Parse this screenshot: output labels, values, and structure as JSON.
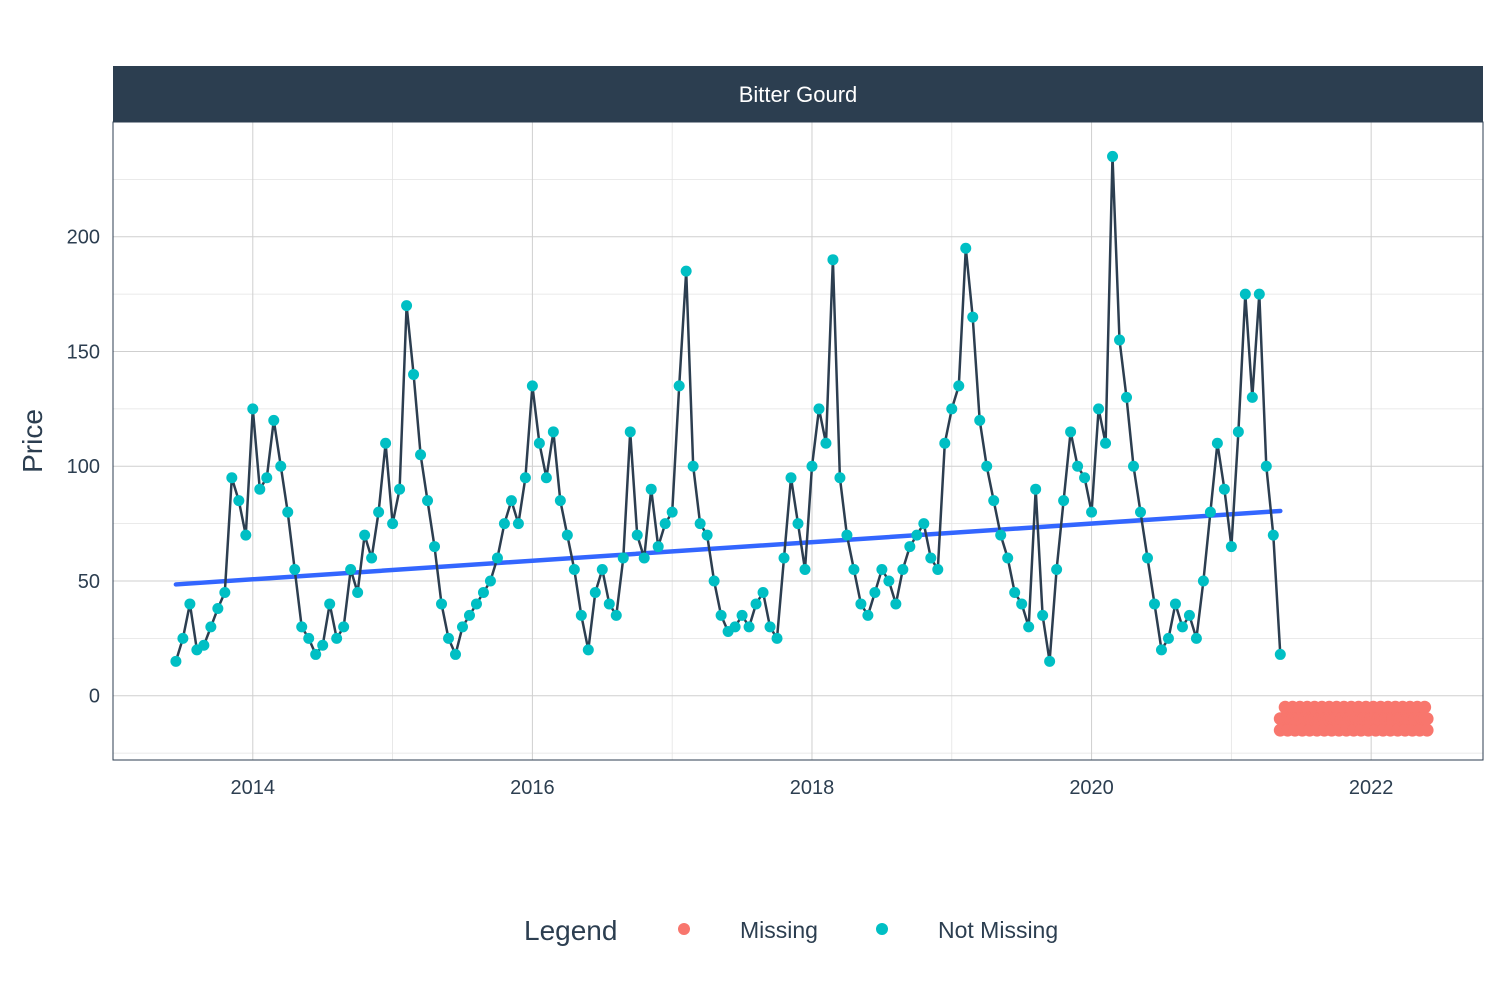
{
  "chart_data": {
    "type": "line",
    "facet_title": "Bitter Gourd",
    "xlabel": "",
    "ylabel": "Price",
    "xlim": [
      2013.0,
      2022.8
    ],
    "ylim": [
      -28,
      250
    ],
    "x_ticks": [
      2014,
      2016,
      2018,
      2020,
      2022
    ],
    "y_ticks": [
      0,
      50,
      100,
      150,
      200
    ],
    "grid": true,
    "legend": {
      "title": "Legend",
      "position": "bottom",
      "entries": [
        {
          "label": "Missing",
          "color": "#f8766d"
        },
        {
          "label": "Not Missing",
          "color": "#00bfc4"
        }
      ]
    },
    "colors": {
      "line": "#2c3e50",
      "trend": "#3366ff",
      "missing": "#f8766d",
      "not_missing": "#00bfc4",
      "strip": "#2c3e50"
    },
    "series": [
      {
        "name": "Not Missing",
        "x": [
          2013.45,
          2013.5,
          2013.55,
          2013.6,
          2013.65,
          2013.7,
          2013.75,
          2013.8,
          2013.85,
          2013.9,
          2013.95,
          2014.0,
          2014.05,
          2014.1,
          2014.15,
          2014.2,
          2014.25,
          2014.3,
          2014.35,
          2014.4,
          2014.45,
          2014.5,
          2014.55,
          2014.6,
          2014.65,
          2014.7,
          2014.75,
          2014.8,
          2014.85,
          2014.9,
          2014.95,
          2015.0,
          2015.05,
          2015.1,
          2015.15,
          2015.2,
          2015.25,
          2015.3,
          2015.35,
          2015.4,
          2015.45,
          2015.5,
          2015.55,
          2015.6,
          2015.65,
          2015.7,
          2015.75,
          2015.8,
          2015.85,
          2015.9,
          2015.95,
          2016.0,
          2016.05,
          2016.1,
          2016.15,
          2016.2,
          2016.25,
          2016.3,
          2016.35,
          2016.4,
          2016.45,
          2016.5,
          2016.55,
          2016.6,
          2016.65,
          2016.7,
          2016.75,
          2016.8,
          2016.85,
          2016.9,
          2016.95,
          2017.0,
          2017.05,
          2017.1,
          2017.15,
          2017.2,
          2017.25,
          2017.3,
          2017.35,
          2017.4,
          2017.45,
          2017.5,
          2017.55,
          2017.6,
          2017.65,
          2017.7,
          2017.75,
          2017.8,
          2017.85,
          2017.9,
          2017.95,
          2018.0,
          2018.05,
          2018.1,
          2018.15,
          2018.2,
          2018.25,
          2018.3,
          2018.35,
          2018.4,
          2018.45,
          2018.5,
          2018.55,
          2018.6,
          2018.65,
          2018.7,
          2018.75,
          2018.8,
          2018.85,
          2018.9,
          2018.95,
          2019.0,
          2019.05,
          2019.1,
          2019.15,
          2019.2,
          2019.25,
          2019.3,
          2019.35,
          2019.4,
          2019.45,
          2019.5,
          2019.55,
          2019.6,
          2019.65,
          2019.7,
          2019.75,
          2019.8,
          2019.85,
          2019.9,
          2019.95,
          2020.0,
          2020.05,
          2020.1,
          2020.15,
          2020.2,
          2020.25,
          2020.3,
          2020.35,
          2020.4,
          2020.45,
          2020.5,
          2020.55,
          2020.6,
          2020.65,
          2020.7,
          2020.75,
          2020.8,
          2020.85,
          2020.9,
          2020.95,
          2021.0,
          2021.05,
          2021.1,
          2021.15,
          2021.2,
          2021.25,
          2021.3,
          2021.35
        ],
        "values": [
          15,
          25,
          40,
          20,
          22,
          30,
          38,
          45,
          95,
          85,
          70,
          125,
          90,
          95,
          120,
          100,
          80,
          55,
          30,
          25,
          18,
          22,
          40,
          25,
          30,
          55,
          45,
          70,
          60,
          80,
          110,
          75,
          90,
          170,
          140,
          105,
          85,
          65,
          40,
          25,
          18,
          30,
          35,
          40,
          45,
          50,
          60,
          75,
          85,
          75,
          95,
          135,
          110,
          95,
          115,
          85,
          70,
          55,
          35,
          20,
          45,
          55,
          40,
          35,
          60,
          115,
          70,
          60,
          90,
          65,
          75,
          80,
          135,
          185,
          100,
          75,
          70,
          50,
          35,
          28,
          30,
          35,
          30,
          40,
          45,
          30,
          25,
          60,
          95,
          75,
          55,
          100,
          125,
          110,
          190,
          95,
          70,
          55,
          40,
          35,
          45,
          55,
          50,
          40,
          55,
          65,
          70,
          75,
          60,
          55,
          110,
          125,
          135,
          195,
          165,
          120,
          100,
          85,
          70,
          60,
          45,
          40,
          30,
          90,
          35,
          15,
          55,
          85,
          115,
          100,
          95,
          80,
          125,
          110,
          235,
          155,
          130,
          100,
          80,
          60,
          40,
          20,
          25,
          40,
          30,
          35,
          25,
          50,
          80,
          110,
          90,
          65,
          115,
          175,
          130,
          175,
          100,
          70,
          18
        ]
      },
      {
        "name": "Missing",
        "x_range": [
          2021.35,
          2022.4
        ],
        "values_range": [
          -15,
          -5
        ]
      },
      {
        "name": "trend",
        "x": [
          2013.45,
          2021.35
        ],
        "values": [
          48.5,
          80.5
        ]
      }
    ]
  }
}
